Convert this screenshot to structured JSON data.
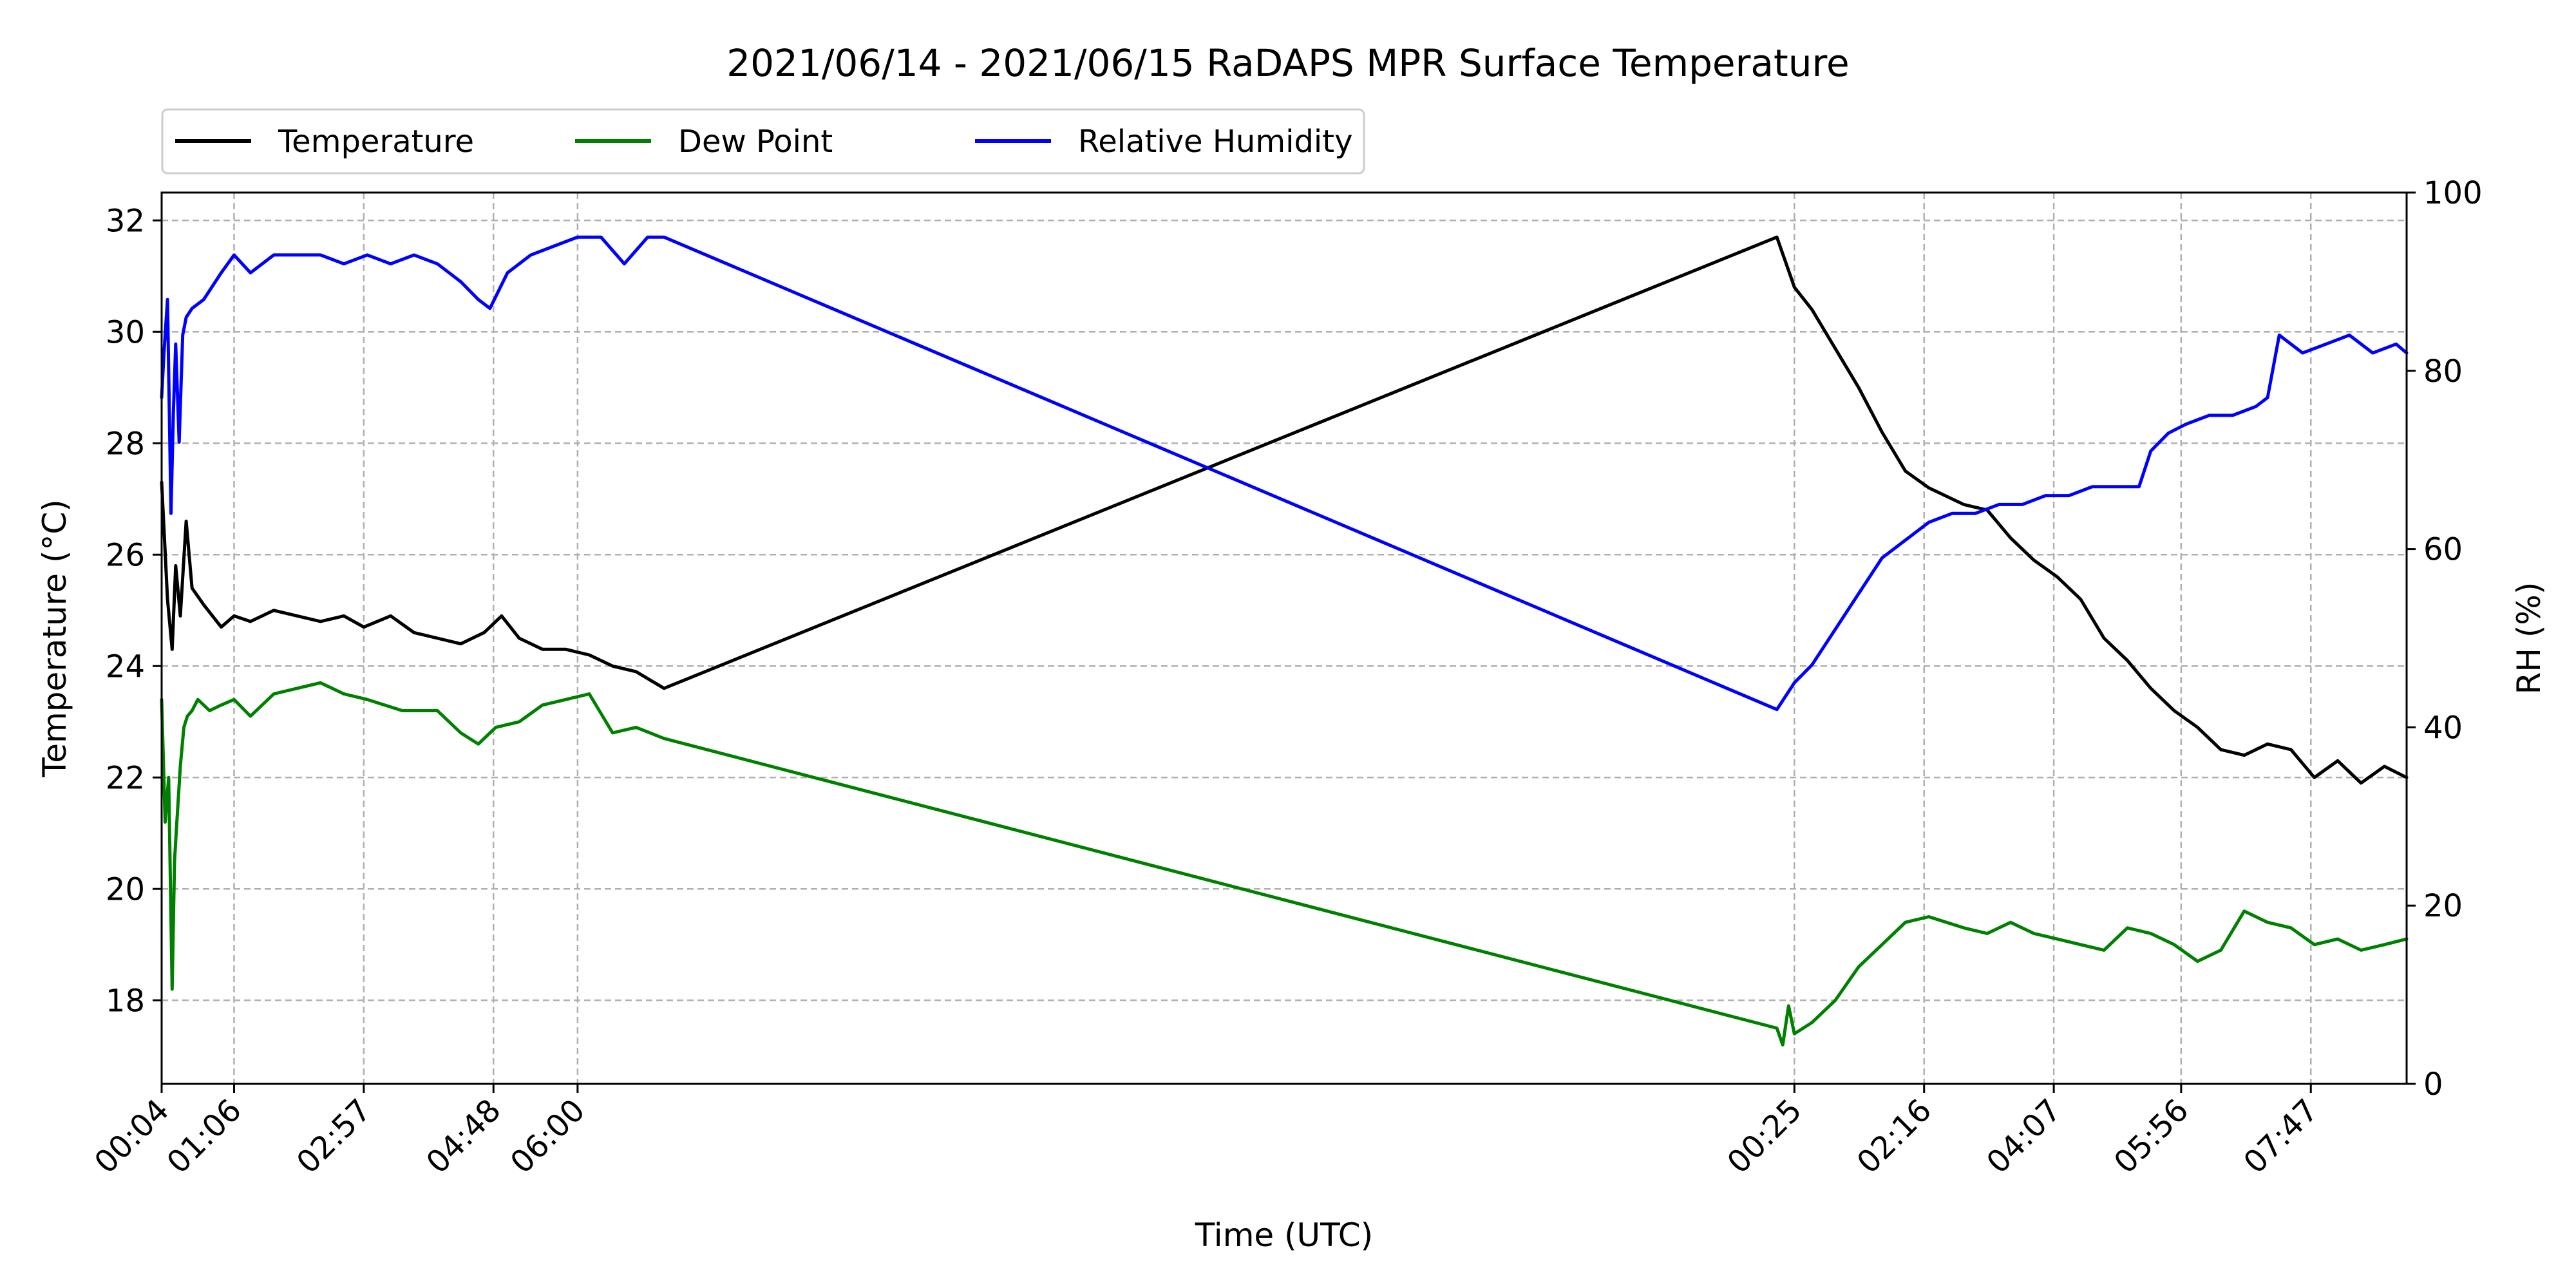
{
  "chart_data": {
    "type": "line",
    "title": "2021/06/14 - 2021/06/15 RaDAPS MPR Surface Temperature",
    "xlabel": "Time (UTC)",
    "ylabel_left": "Temperature (°C)",
    "ylabel_right": "RH (%)",
    "xlim": [
      "2021-06-14 00:04",
      "2021-06-15 09:09"
    ],
    "ylim_left": [
      16.5,
      32.5
    ],
    "ylim_right": [
      0,
      100
    ],
    "grid": true,
    "legend_position": "top-left, above plot",
    "x_tick_labels": [
      "00:04",
      "01:06",
      "02:57",
      "04:48",
      "06:00",
      "00:25",
      "02:16",
      "04:07",
      "05:56",
      "07:47"
    ],
    "x_ticks": [
      "2021-06-14 00:04",
      "2021-06-14 01:06",
      "2021-06-14 02:57",
      "2021-06-14 04:48",
      "2021-06-14 06:00",
      "2021-06-15 00:25",
      "2021-06-15 02:16",
      "2021-06-15 04:07",
      "2021-06-15 05:56",
      "2021-06-15 07:47"
    ],
    "y_ticks_left": [
      18,
      20,
      22,
      24,
      26,
      28,
      30,
      32
    ],
    "y_ticks_right": [
      0,
      20,
      40,
      60,
      80,
      100
    ],
    "series": [
      {
        "name": "Temperature",
        "axis": "left",
        "color": "#000000",
        "x": [
          "2021-06-14 00:04",
          "2021-06-14 00:09",
          "2021-06-14 00:13",
          "2021-06-14 00:16",
          "2021-06-14 00:20",
          "2021-06-14 00:25",
          "2021-06-14 00:30",
          "2021-06-14 00:40",
          "2021-06-14 00:55",
          "2021-06-14 01:06",
          "2021-06-14 01:20",
          "2021-06-14 01:40",
          "2021-06-14 02:00",
          "2021-06-14 02:20",
          "2021-06-14 02:40",
          "2021-06-14 02:57",
          "2021-06-14 03:20",
          "2021-06-14 03:40",
          "2021-06-14 04:00",
          "2021-06-14 04:20",
          "2021-06-14 04:40",
          "2021-06-14 04:55",
          "2021-06-14 05:10",
          "2021-06-14 05:30",
          "2021-06-14 05:50",
          "2021-06-14 06:10",
          "2021-06-14 06:30",
          "2021-06-14 06:50",
          "2021-06-14 07:14",
          "2021-06-15 00:10",
          "2021-06-15 00:20",
          "2021-06-15 00:25",
          "2021-06-15 00:40",
          "2021-06-15 01:00",
          "2021-06-15 01:20",
          "2021-06-15 01:40",
          "2021-06-15 02:00",
          "2021-06-15 02:20",
          "2021-06-15 02:50",
          "2021-06-15 03:10",
          "2021-06-15 03:30",
          "2021-06-15 03:50",
          "2021-06-15 04:10",
          "2021-06-15 04:30",
          "2021-06-15 04:50",
          "2021-06-15 05:10",
          "2021-06-15 05:30",
          "2021-06-15 05:50",
          "2021-06-15 06:10",
          "2021-06-15 06:30",
          "2021-06-15 06:50",
          "2021-06-15 07:10",
          "2021-06-15 07:30",
          "2021-06-15 07:50",
          "2021-06-15 08:10",
          "2021-06-15 08:30",
          "2021-06-15 08:50",
          "2021-06-15 09:09"
        ],
        "values": [
          27.3,
          25.2,
          24.3,
          25.8,
          24.9,
          26.6,
          25.4,
          25.1,
          24.7,
          24.9,
          24.8,
          25.0,
          24.9,
          24.8,
          24.9,
          24.7,
          24.9,
          24.6,
          24.5,
          24.4,
          24.6,
          24.9,
          24.5,
          24.3,
          24.3,
          24.2,
          24.0,
          23.9,
          23.6,
          31.7,
          31.1,
          30.8,
          30.4,
          29.7,
          29.0,
          28.2,
          27.5,
          27.2,
          26.9,
          26.8,
          26.3,
          25.9,
          25.6,
          25.2,
          24.5,
          24.1,
          23.6,
          23.2,
          22.9,
          22.5,
          22.4,
          22.6,
          22.5,
          22.0,
          22.3,
          21.9,
          22.2,
          22.0
        ]
      },
      {
        "name": "Dew Point",
        "axis": "left",
        "color": "#008000",
        "x": [
          "2021-06-14 00:04",
          "2021-06-14 00:07",
          "2021-06-14 00:10",
          "2021-06-14 00:13",
          "2021-06-14 00:15",
          "2021-06-14 00:17",
          "2021-06-14 00:20",
          "2021-06-14 00:23",
          "2021-06-14 00:26",
          "2021-06-14 00:30",
          "2021-06-14 00:35",
          "2021-06-14 00:45",
          "2021-06-14 00:55",
          "2021-06-14 01:06",
          "2021-06-14 01:20",
          "2021-06-14 01:40",
          "2021-06-14 02:00",
          "2021-06-14 02:20",
          "2021-06-14 02:40",
          "2021-06-14 03:00",
          "2021-06-14 03:30",
          "2021-06-14 04:00",
          "2021-06-14 04:20",
          "2021-06-14 04:35",
          "2021-06-14 04:50",
          "2021-06-14 05:10",
          "2021-06-14 05:30",
          "2021-06-14 05:50",
          "2021-06-14 06:10",
          "2021-06-14 06:30",
          "2021-06-14 06:50",
          "2021-06-14 07:14",
          "2021-06-15 00:10",
          "2021-06-15 00:15",
          "2021-06-15 00:20",
          "2021-06-15 00:25",
          "2021-06-15 00:40",
          "2021-06-15 01:00",
          "2021-06-15 01:20",
          "2021-06-15 01:40",
          "2021-06-15 02:00",
          "2021-06-15 02:20",
          "2021-06-15 02:50",
          "2021-06-15 03:10",
          "2021-06-15 03:30",
          "2021-06-15 03:50",
          "2021-06-15 04:10",
          "2021-06-15 04:30",
          "2021-06-15 04:50",
          "2021-06-15 05:10",
          "2021-06-15 05:30",
          "2021-06-15 05:50",
          "2021-06-15 06:10",
          "2021-06-15 06:30",
          "2021-06-15 06:50",
          "2021-06-15 07:10",
          "2021-06-15 07:30",
          "2021-06-15 07:50",
          "2021-06-15 08:10",
          "2021-06-15 08:30",
          "2021-06-15 08:50",
          "2021-06-15 09:09"
        ],
        "values": [
          23.4,
          21.2,
          22.0,
          18.2,
          20.5,
          21.2,
          22.2,
          22.9,
          23.1,
          23.2,
          23.4,
          23.2,
          23.3,
          23.4,
          23.1,
          23.5,
          23.6,
          23.7,
          23.5,
          23.4,
          23.2,
          23.2,
          22.8,
          22.6,
          22.9,
          23.0,
          23.3,
          23.4,
          23.5,
          22.8,
          22.9,
          22.7,
          17.5,
          17.2,
          17.9,
          17.4,
          17.6,
          18.0,
          18.6,
          19.0,
          19.4,
          19.5,
          19.3,
          19.2,
          19.4,
          19.2,
          19.1,
          19.0,
          18.9,
          19.3,
          19.2,
          19.0,
          18.7,
          18.9,
          19.6,
          19.4,
          19.3,
          19.0,
          19.1,
          18.9,
          19.0,
          19.1
        ]
      },
      {
        "name": "Relative Humidity",
        "axis": "right",
        "color": "#0000ff",
        "x": [
          "2021-06-14 00:04",
          "2021-06-14 00:06",
          "2021-06-14 00:09",
          "2021-06-14 00:12",
          "2021-06-14 00:14",
          "2021-06-14 00:16",
          "2021-06-14 00:19",
          "2021-06-14 00:22",
          "2021-06-14 00:25",
          "2021-06-14 00:30",
          "2021-06-14 00:40",
          "2021-06-14 00:55",
          "2021-06-14 01:06",
          "2021-06-14 01:20",
          "2021-06-14 01:40",
          "2021-06-14 02:00",
          "2021-06-14 02:20",
          "2021-06-14 02:40",
          "2021-06-14 03:00",
          "2021-06-14 03:20",
          "2021-06-14 03:40",
          "2021-06-14 04:00",
          "2021-06-14 04:20",
          "2021-06-14 04:35",
          "2021-06-14 04:45",
          "2021-06-14 05:00",
          "2021-06-14 05:20",
          "2021-06-14 05:40",
          "2021-06-14 06:00",
          "2021-06-14 06:20",
          "2021-06-14 06:40",
          "2021-06-14 07:00",
          "2021-06-14 07:14",
          "2021-06-15 00:10",
          "2021-06-15 00:20",
          "2021-06-15 00:25",
          "2021-06-15 00:40",
          "2021-06-15 01:00",
          "2021-06-15 01:20",
          "2021-06-15 01:40",
          "2021-06-15 02:00",
          "2021-06-15 02:20",
          "2021-06-15 02:40",
          "2021-06-15 03:00",
          "2021-06-15 03:20",
          "2021-06-15 03:40",
          "2021-06-15 04:00",
          "2021-06-15 04:20",
          "2021-06-15 04:40",
          "2021-06-15 05:00",
          "2021-06-15 05:20",
          "2021-06-15 05:30",
          "2021-06-15 05:45",
          "2021-06-15 06:00",
          "2021-06-15 06:20",
          "2021-06-15 06:40",
          "2021-06-15 07:00",
          "2021-06-15 07:10",
          "2021-06-15 07:20",
          "2021-06-15 07:40",
          "2021-06-15 08:00",
          "2021-06-15 08:20",
          "2021-06-15 08:40",
          "2021-06-15 09:00",
          "2021-06-15 09:09"
        ],
        "values": [
          77,
          82,
          88,
          64,
          75,
          83,
          72,
          84,
          86,
          87,
          88,
          91,
          93,
          91,
          93,
          93,
          93,
          92,
          93,
          92,
          93,
          92,
          90,
          88,
          87,
          91,
          93,
          94,
          95,
          95,
          92,
          95,
          95,
          42,
          44,
          45,
          47,
          51,
          55,
          59,
          61,
          63,
          64,
          64,
          65,
          65,
          66,
          66,
          67,
          67,
          67,
          71,
          73,
          74,
          75,
          75,
          76,
          77,
          84,
          82,
          83,
          84,
          82,
          83,
          82
        ]
      }
    ]
  }
}
